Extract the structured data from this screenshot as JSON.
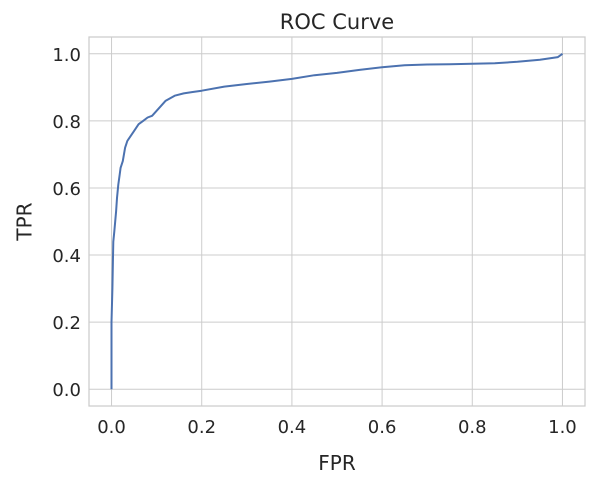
{
  "chart_data": {
    "type": "line",
    "title": "ROC Curve",
    "xlabel": "FPR",
    "ylabel": "TPR",
    "xlim": [
      -0.05,
      1.05
    ],
    "ylim": [
      -0.05,
      1.05
    ],
    "grid": true,
    "legend": "none",
    "x_ticks": [
      "0.0",
      "0.2",
      "0.4",
      "0.6",
      "0.8",
      "1.0"
    ],
    "y_ticks": [
      "0.0",
      "0.2",
      "0.4",
      "0.6",
      "0.8",
      "1.0"
    ],
    "series": [
      {
        "color": "#4c72b0",
        "x": [
          0.0,
          0.0,
          0.002,
          0.003,
          0.004,
          0.006,
          0.008,
          0.01,
          0.012,
          0.015,
          0.018,
          0.02,
          0.025,
          0.03,
          0.035,
          0.04,
          0.05,
          0.06,
          0.07,
          0.08,
          0.09,
          0.1,
          0.11,
          0.12,
          0.14,
          0.16,
          0.18,
          0.2,
          0.25,
          0.3,
          0.35,
          0.4,
          0.45,
          0.5,
          0.55,
          0.6,
          0.65,
          0.7,
          0.75,
          0.8,
          0.85,
          0.9,
          0.95,
          0.99,
          1.0
        ],
        "y": [
          0.0,
          0.2,
          0.3,
          0.38,
          0.44,
          0.47,
          0.5,
          0.53,
          0.57,
          0.61,
          0.64,
          0.66,
          0.68,
          0.72,
          0.74,
          0.75,
          0.77,
          0.79,
          0.8,
          0.81,
          0.815,
          0.83,
          0.845,
          0.86,
          0.875,
          0.882,
          0.886,
          0.89,
          0.902,
          0.91,
          0.917,
          0.925,
          0.936,
          0.943,
          0.952,
          0.96,
          0.966,
          0.968,
          0.969,
          0.97,
          0.972,
          0.976,
          0.982,
          0.99,
          1.0
        ]
      }
    ]
  }
}
